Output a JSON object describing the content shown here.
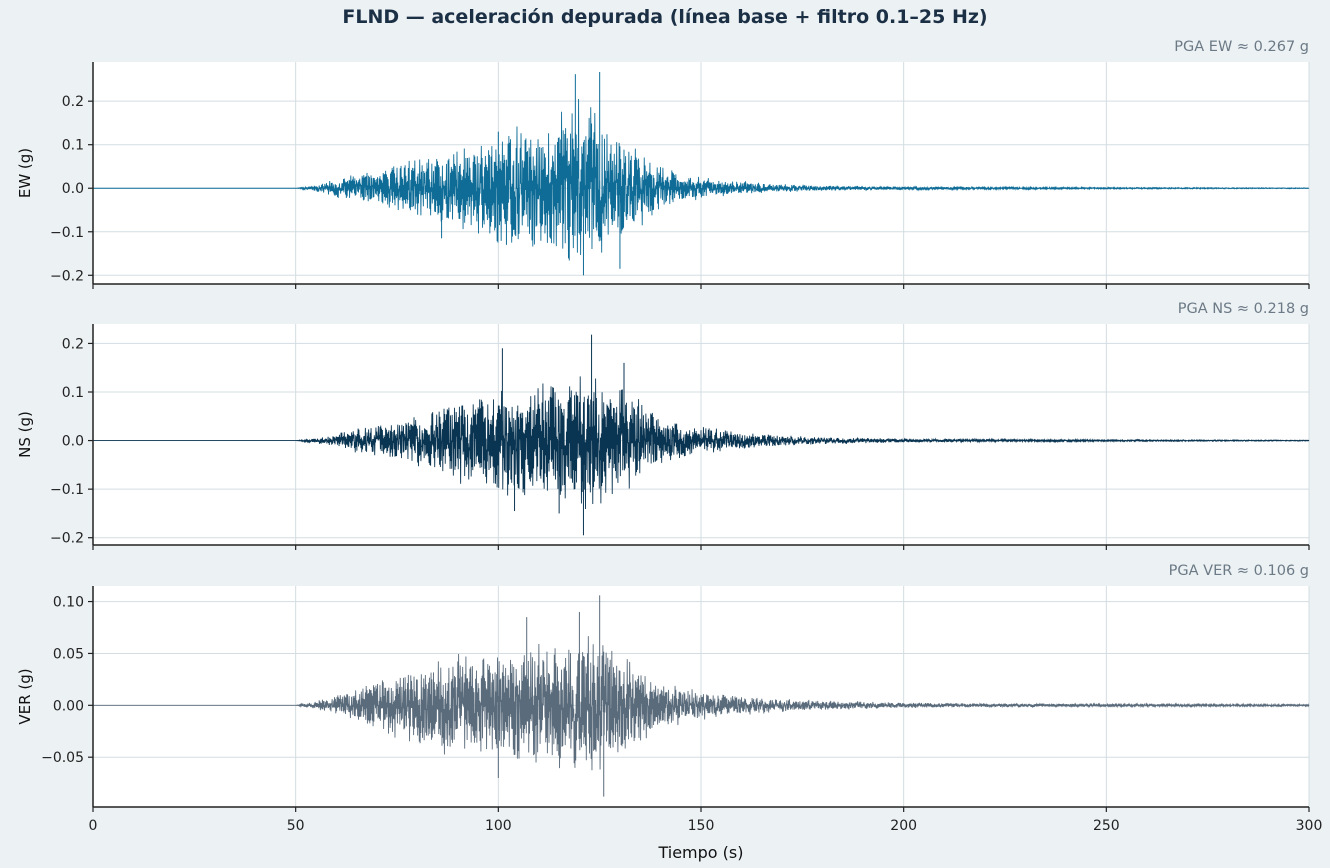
{
  "chart_data": {
    "type": "line",
    "title": "FLND — aceleración depurada (línea base + filtro 0.1–25 Hz)",
    "xlabel": "Tiempo (s)",
    "xlim": [
      0,
      300
    ],
    "xticks": [
      0,
      50,
      100,
      150,
      200,
      250,
      300
    ],
    "xtick_labels": [
      "0",
      "50",
      "100",
      "150",
      "200",
      "250",
      "300"
    ],
    "grid": true,
    "panels": [
      {
        "name": "EW",
        "ylabel": "EW (g)",
        "annotation": "PGA EW ≈ 0.267 g",
        "pga": 0.267,
        "color": "#0e6c97",
        "ylim": [
          -0.22,
          0.29
        ],
        "yticks": [
          -0.2,
          -0.1,
          0.0,
          0.1,
          0.2
        ],
        "ytick_labels": [
          "−0.2",
          "−0.1",
          "0.0",
          "0.1",
          "0.2"
        ],
        "envelope": [
          [
            50,
            0.0
          ],
          [
            55,
            0.008
          ],
          [
            60,
            0.022
          ],
          [
            65,
            0.035
          ],
          [
            70,
            0.045
          ],
          [
            75,
            0.06
          ],
          [
            80,
            0.07
          ],
          [
            85,
            0.085
          ],
          [
            90,
            0.1
          ],
          [
            95,
            0.12
          ],
          [
            100,
            0.14
          ],
          [
            105,
            0.145
          ],
          [
            110,
            0.15
          ],
          [
            115,
            0.17
          ],
          [
            120,
            0.2
          ],
          [
            125,
            0.18
          ],
          [
            130,
            0.13
          ],
          [
            135,
            0.09
          ],
          [
            140,
            0.06
          ],
          [
            145,
            0.035
          ],
          [
            150,
            0.025
          ],
          [
            155,
            0.02
          ],
          [
            160,
            0.018
          ],
          [
            170,
            0.01
          ],
          [
            180,
            0.007
          ],
          [
            190,
            0.005
          ],
          [
            200,
            0.004
          ],
          [
            220,
            0.003
          ],
          [
            250,
            0.002
          ],
          [
            300,
            0.001
          ]
        ],
        "peaks": [
          [
            119,
            0.262
          ],
          [
            121,
            -0.2
          ],
          [
            125,
            0.267
          ],
          [
            130,
            -0.185
          ],
          [
            100,
            0.13
          ],
          [
            86,
            -0.115
          ],
          [
            102,
            -0.13
          ]
        ]
      },
      {
        "name": "NS",
        "ylabel": "NS (g)",
        "annotation": "PGA NS ≈ 0.218 g",
        "pga": 0.218,
        "color": "#0a3552",
        "ylim": [
          -0.215,
          0.24
        ],
        "yticks": [
          -0.2,
          -0.1,
          0.0,
          0.1,
          0.2
        ],
        "ytick_labels": [
          "−0.2",
          "−0.1",
          "0.0",
          "0.1",
          "0.2"
        ],
        "envelope": [
          [
            50,
            0.0
          ],
          [
            55,
            0.006
          ],
          [
            60,
            0.015
          ],
          [
            65,
            0.025
          ],
          [
            70,
            0.035
          ],
          [
            75,
            0.045
          ],
          [
            80,
            0.055
          ],
          [
            85,
            0.07
          ],
          [
            90,
            0.09
          ],
          [
            95,
            0.105
          ],
          [
            100,
            0.12
          ],
          [
            105,
            0.13
          ],
          [
            110,
            0.13
          ],
          [
            115,
            0.135
          ],
          [
            120,
            0.15
          ],
          [
            125,
            0.145
          ],
          [
            130,
            0.12
          ],
          [
            135,
            0.09
          ],
          [
            140,
            0.06
          ],
          [
            145,
            0.04
          ],
          [
            150,
            0.03
          ],
          [
            155,
            0.025
          ],
          [
            160,
            0.02
          ],
          [
            170,
            0.012
          ],
          [
            180,
            0.008
          ],
          [
            190,
            0.006
          ],
          [
            200,
            0.004
          ],
          [
            220,
            0.003
          ],
          [
            250,
            0.002
          ],
          [
            300,
            0.001
          ]
        ],
        "peaks": [
          [
            101,
            0.19
          ],
          [
            104,
            -0.145
          ],
          [
            123,
            0.218
          ],
          [
            121,
            -0.195
          ],
          [
            131,
            0.16
          ],
          [
            115,
            -0.15
          ]
        ]
      },
      {
        "name": "VER",
        "ylabel": "VER (g)",
        "annotation": "PGA VER ≈ 0.106 g",
        "pga": 0.106,
        "color": "#5a6b7b",
        "ylim": [
          -0.098,
          0.115
        ],
        "yticks": [
          -0.05,
          0.0,
          0.05,
          0.1
        ],
        "ytick_labels": [
          "−0.05",
          "0.00",
          "0.05",
          "0.10"
        ],
        "envelope": [
          [
            50,
            0.0
          ],
          [
            55,
            0.005
          ],
          [
            60,
            0.01
          ],
          [
            65,
            0.018
          ],
          [
            70,
            0.028
          ],
          [
            75,
            0.035
          ],
          [
            80,
            0.04
          ],
          [
            85,
            0.045
          ],
          [
            90,
            0.05
          ],
          [
            95,
            0.055
          ],
          [
            100,
            0.06
          ],
          [
            105,
            0.06
          ],
          [
            110,
            0.062
          ],
          [
            115,
            0.065
          ],
          [
            120,
            0.07
          ],
          [
            125,
            0.07
          ],
          [
            130,
            0.055
          ],
          [
            135,
            0.04
          ],
          [
            140,
            0.025
          ],
          [
            145,
            0.02
          ],
          [
            150,
            0.015
          ],
          [
            155,
            0.012
          ],
          [
            160,
            0.01
          ],
          [
            170,
            0.007
          ],
          [
            180,
            0.005
          ],
          [
            190,
            0.004
          ],
          [
            200,
            0.003
          ],
          [
            220,
            0.002
          ],
          [
            250,
            0.0015
          ],
          [
            300,
            0.001
          ]
        ],
        "peaks": [
          [
            107,
            0.085
          ],
          [
            125,
            0.106
          ],
          [
            126,
            -0.088
          ],
          [
            100,
            -0.07
          ],
          [
            120,
            0.09
          ]
        ]
      }
    ]
  }
}
